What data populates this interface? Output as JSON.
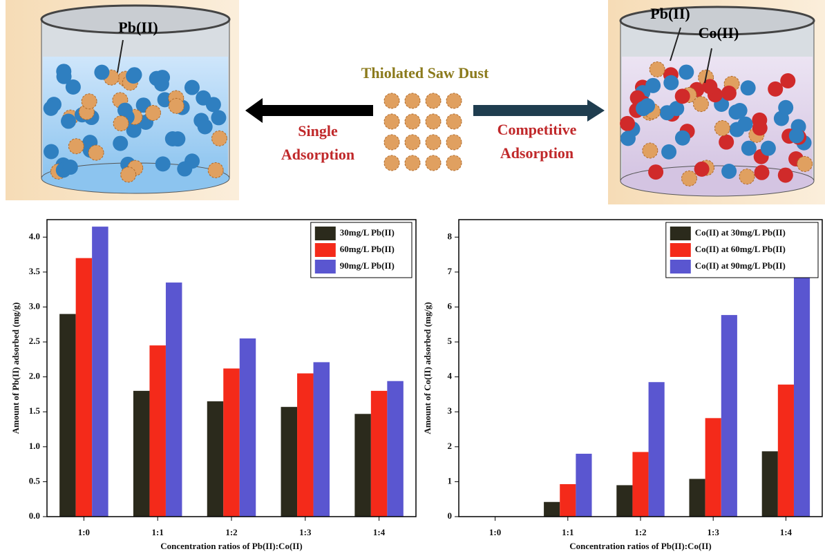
{
  "diagram": {
    "left_label": "Pb(II)",
    "center_title": "Thiolated Saw Dust",
    "left_arrow": [
      "Single",
      "Adsorption"
    ],
    "right_arrow": [
      "Competitive",
      "Adsorption"
    ],
    "right_labels": [
      "Pb(II)",
      "Co(II)"
    ]
  },
  "chart_data": [
    {
      "type": "bar",
      "ylabel": "Amount of Pb(II) adsorbed (mg/g)",
      "xlabel": "Concentration ratios of Pb(II):Co(II)",
      "categories": [
        "1:0",
        "1:1",
        "1:2",
        "1:3",
        "1:4"
      ],
      "series": [
        {
          "name": "30mg/L Pb(II)",
          "color": "#2b2a1c",
          "values": [
            2.9,
            1.8,
            1.65,
            1.57,
            1.47
          ]
        },
        {
          "name": "60mg/L Pb(II)",
          "color": "#f42a1a",
          "values": [
            3.7,
            2.45,
            2.12,
            2.05,
            1.8
          ]
        },
        {
          "name": "90mg/L Pb(II)",
          "color": "#5a56d0",
          "values": [
            4.15,
            3.35,
            2.55,
            2.21,
            1.94
          ]
        }
      ],
      "ylim": [
        0,
        4.25
      ],
      "yticks": [
        {
          "value": 0,
          "label": "0.0"
        },
        0.5,
        {
          "value": 1,
          "label": "1.0"
        },
        1.5,
        {
          "value": 2,
          "label": "2.0"
        },
        2.5,
        {
          "value": 3,
          "label": "3.0"
        },
        3.5,
        {
          "value": 4,
          "label": "4.0"
        }
      ],
      "legend": "upper right"
    },
    {
      "type": "bar",
      "ylabel": "Amount of Co(II) adsorbed (mg/g)",
      "xlabel": "Concentration ratios of Pb(II):Co(II)",
      "categories": [
        "1:0",
        "1:1",
        "1:2",
        "1:3",
        "1:4"
      ],
      "series": [
        {
          "name": "Co(II) at 30mg/L Pb(II)",
          "color": "#2b2a1c",
          "values": [
            0,
            0.42,
            0.9,
            1.08,
            1.87
          ]
        },
        {
          "name": "Co(II) at 60mg/L Pb(II)",
          "color": "#f42a1a",
          "values": [
            0,
            0.93,
            1.85,
            2.82,
            3.78
          ]
        },
        {
          "name": "Co(II) at 90mg/L Pb(II)",
          "color": "#5a56d0",
          "values": [
            0,
            1.8,
            3.85,
            5.77,
            7.65
          ]
        }
      ],
      "ylim": [
        0,
        8.5
      ],
      "yticks": [
        0,
        1,
        2,
        3,
        4,
        5,
        6,
        7,
        8
      ],
      "legend": "upper right"
    }
  ]
}
